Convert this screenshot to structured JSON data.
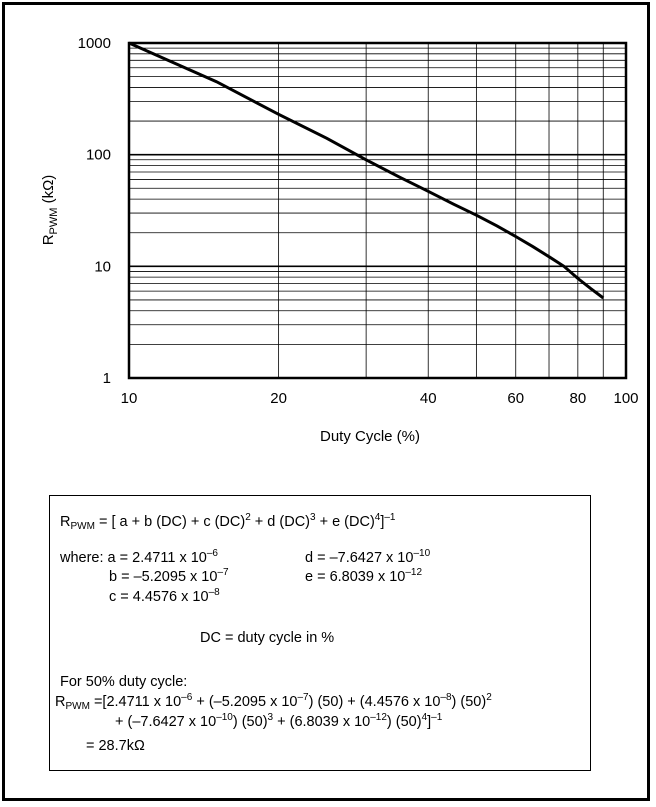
{
  "chart_data": {
    "type": "line",
    "xscale": "log",
    "yscale": "log",
    "xlim": [
      10,
      100
    ],
    "ylim": [
      1,
      1000
    ],
    "xlabel": "Duty Cycle (%)",
    "ylabel_main": "R",
    "ylabel_sub": "PWM",
    "ylabel_unit": " (kΩ)",
    "x_ticks": [
      "10",
      "20",
      "40",
      "60",
      "80",
      "100"
    ],
    "x_tick_values": [
      10,
      20,
      40,
      60,
      80,
      100
    ],
    "y_ticks": [
      "1",
      "10",
      "100",
      "1000"
    ],
    "y_tick_values": [
      1,
      10,
      100,
      1000
    ],
    "grid": true,
    "series": [
      {
        "x": [
          10,
          15,
          20,
          25,
          30,
          35,
          40,
          45,
          50,
          55,
          60,
          65,
          70,
          75,
          80,
          85,
          90
        ],
        "y": [
          1000,
          450,
          230,
          140,
          90,
          63,
          47,
          36,
          28.7,
          23,
          18.5,
          15,
          12.2,
          10,
          7.8,
          6.3,
          5.2
        ]
      }
    ]
  },
  "formula": {
    "r": "R",
    "pwm": "PWM",
    "main_1": " = [ a +  b (DC) + c (DC)",
    "sq": "2",
    "main_2": " + d (DC)",
    "cu": "3",
    "main_3": " + e (DC)",
    "qu": "4",
    "main_4": "]",
    "inv": "–1",
    "where": "where: a =  2.4711 x 10",
    "a_exp": "–6",
    "b_text": "b =  –5.2095 x 10",
    "b_exp": "–7",
    "c_text": "c =  4.4576 x 10",
    "c_exp": "–8",
    "d_text": "d =  –7.6427 x 10",
    "d_exp": "–10",
    "e_text": "e =  6.8039 x 10",
    "e_exp": "–12",
    "dc_def": "DC = duty cycle in %",
    "example_heading": "For 50% duty cycle:",
    "ex1_a": " =[2.4711 x 10",
    "ex1_a_exp": "–6",
    "ex1_b": " + (–5.2095 x 10",
    "ex1_b_exp": "–7",
    "ex1_c": ") (50) + (4.4576 x 10",
    "ex1_c_exp": "–8",
    "ex1_d": ") (50)",
    "ex1_d_exp": "2",
    "ex2_a": "+ (–7.6427 x 10",
    "ex2_a_exp": "–10",
    "ex2_b": ") (50)",
    "ex2_b_exp": "3",
    "ex2_c": " + (6.8039 x 10",
    "ex2_c_exp": "–12",
    "ex2_d": ") (50)",
    "ex2_d_exp": "4",
    "ex2_e": "]",
    "ex2_e_exp": "–1",
    "result": "= 28.7kΩ"
  }
}
